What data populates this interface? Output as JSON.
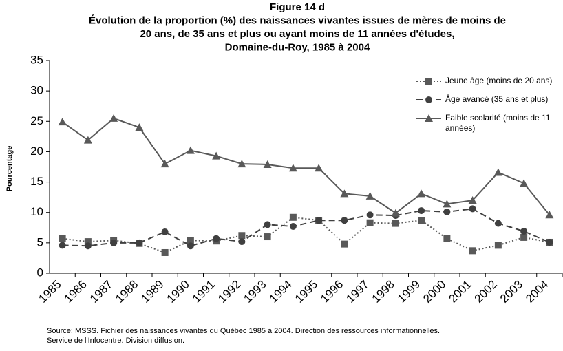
{
  "chart_data": {
    "type": "line",
    "title": [
      "Figure 14 d",
      "Évolution de la proportion (%) des naissances vivantes issues de mères de moins de",
      "20 ans, de 35 ans et plus ou ayant moins de 11 années d'études,",
      "Domaine-du-Roy, 1985 à 2004"
    ],
    "ylabel": "Pourcentage",
    "source": [
      "Source: MSSS. Fichier des naissances vivantes du Québec 1985 à 2004. Direction des ressources informationnelles.",
      "Service de l'Infocentre. Division diffusion."
    ],
    "categories": [
      "1985",
      "1986",
      "1987",
      "1988",
      "1989",
      "1990",
      "1991",
      "1992",
      "1993",
      "1994",
      "1995",
      "1996",
      "1997",
      "1998",
      "1999",
      "2000",
      "2001",
      "2002",
      "2003",
      "2004"
    ],
    "ylim": [
      0,
      35
    ],
    "yticks": [
      0,
      5,
      10,
      15,
      20,
      25,
      30,
      35
    ],
    "legend": "top-right",
    "series": [
      {
        "name": "Jeune âge (moins de 20 ans)",
        "color": "#595959",
        "dash": "dot",
        "marker": "square",
        "values": [
          5.7,
          5.2,
          5.4,
          4.9,
          3.4,
          5.4,
          5.3,
          6.2,
          6.0,
          9.2,
          8.7,
          4.8,
          8.3,
          8.2,
          8.7,
          5.7,
          3.7,
          4.6,
          5.9,
          5.1
        ]
      },
      {
        "name": "Âge avancé (35 ans et plus)",
        "color": "#404040",
        "dash": "dash",
        "marker": "circle",
        "values": [
          4.6,
          4.5,
          5.0,
          5.0,
          6.8,
          4.5,
          5.7,
          5.2,
          8.0,
          7.7,
          8.7,
          8.7,
          9.6,
          9.5,
          10.3,
          10.1,
          10.6,
          8.2,
          6.9,
          5.1
        ]
      },
      {
        "name": "Faible scolarité (moins de 11 années)",
        "color": "#595959",
        "dash": "solid",
        "marker": "triangle",
        "values": [
          24.9,
          21.9,
          25.5,
          24.0,
          18.0,
          20.2,
          19.3,
          18.0,
          17.9,
          17.3,
          17.3,
          13.1,
          12.7,
          9.9,
          13.1,
          11.4,
          12.0,
          16.6,
          14.8,
          9.6
        ]
      }
    ]
  }
}
